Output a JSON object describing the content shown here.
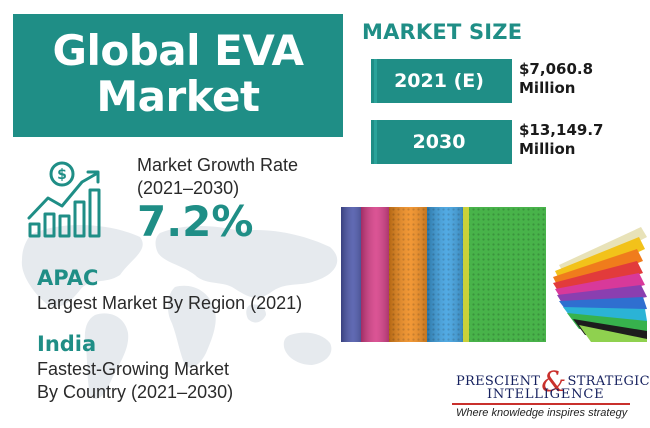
{
  "title": {
    "line1": "Global EVA",
    "line2": "Market"
  },
  "market_size": {
    "heading": "MARKET SIZE",
    "rows": [
      {
        "year": "2021 (E)",
        "value": "$7,060.8",
        "unit": "Million"
      },
      {
        "year": "2030",
        "value": "$13,149.7",
        "unit": "Million"
      }
    ]
  },
  "growth": {
    "label_line1": "Market Growth Rate",
    "label_line2": "(2021–2030)",
    "value": "7.2%",
    "icon": "dollar-growth-bar-chart-icon"
  },
  "largest_region": {
    "name": "APAC",
    "description": "Largest Market By Region (2021)"
  },
  "fastest_country": {
    "name": "India",
    "description_line1": "Fastest-Growing Market",
    "description_line2": "By Country (2021–2030)"
  },
  "logo": {
    "word1": "PRESCIENT",
    "ampersand": "&",
    "word2": "STRATEGIC",
    "word3": "INTELLIGENCE",
    "tagline": "Where knowledge inspires strategy"
  },
  "colors": {
    "accent": "#1f8e86",
    "text": "#2a2a2a",
    "logo_navy": "#15205e",
    "logo_red": "#c9302c",
    "map": "#e6eaee"
  }
}
